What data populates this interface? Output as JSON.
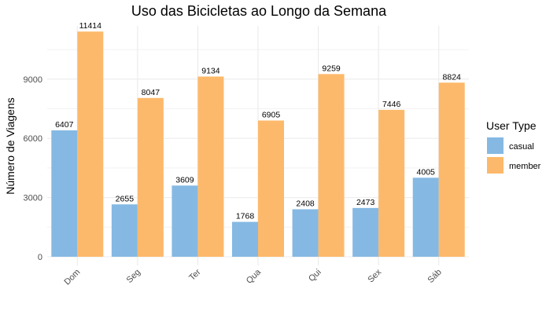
{
  "chart_data": {
    "type": "bar",
    "title": "Uso das Bicicletas ao Longo da Semana",
    "xlabel": "",
    "ylabel": "Número de Viagens",
    "categories": [
      "Dom",
      "Seg",
      "Ter",
      "Qua",
      "Qui",
      "Sex",
      "Sáb"
    ],
    "series": [
      {
        "name": "casual",
        "values": [
          6407,
          2655,
          3609,
          1768,
          2408,
          2473,
          4005
        ],
        "color": "#85b9e3"
      },
      {
        "name": "member",
        "values": [
          11414,
          8047,
          9134,
          6905,
          9259,
          7446,
          8824
        ],
        "color": "#fdb96b"
      }
    ],
    "ylim": [
      0,
      11700
    ],
    "yticks": [
      0,
      3000,
      6000,
      9000
    ],
    "grid": true,
    "legend": {
      "title": "User Type",
      "placement": "right"
    },
    "data_labels": true
  }
}
